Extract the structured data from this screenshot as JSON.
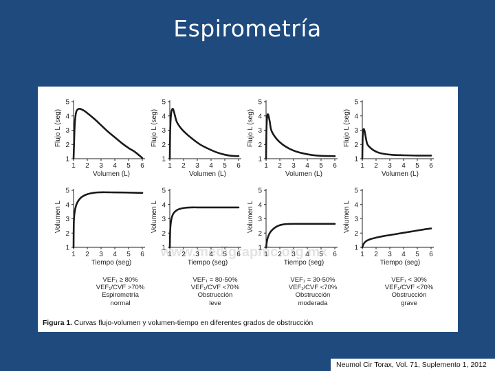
{
  "title": "Espirometría",
  "caption": {
    "label": "Figura 1.",
    "text": " Curvas flujo-volumen y volumen-tiempo en diferentes grados de obstrucción"
  },
  "watermark": "www.medigraphic.org.mx",
  "citation": "Neumol Cir Torax, Vol. 71, Suplemento 1, 2012",
  "columns": [
    {
      "lines": [
        "VEF₁ ≥ 80%",
        "VEF₁/CVF >70%",
        "Espirometría",
        "normal"
      ]
    },
    {
      "lines": [
        "VEF₁ = 80-50%",
        "VEF₁/CVF <70%",
        "Obstrucción",
        "leve"
      ]
    },
    {
      "lines": [
        "VEF₁ = 30-50%",
        "VEF₁/CVF <70%",
        "Obstrucción",
        "moderada"
      ]
    },
    {
      "lines": [
        "VEF₁ < 30%",
        "VEF₁/CVF <70%",
        "Obstrucción",
        "grave"
      ]
    }
  ],
  "chart_data": [
    {
      "type": "line",
      "row": "flujo-volumen",
      "xlabel": "Volumen (L)",
      "ylabel": "Flujo L (seg)",
      "x_ticks": [
        1,
        2,
        3,
        4,
        5,
        6
      ],
      "y_ticks": [
        1,
        2,
        3,
        4,
        5
      ],
      "xlim": [
        1,
        6
      ],
      "ylim": [
        1,
        5
      ],
      "series": [
        {
          "x": [
            1.0,
            1.05,
            1.1,
            1.2,
            1.4,
            1.7,
            2.0,
            2.5,
            3.0,
            3.5,
            4.0,
            4.5,
            5.0,
            5.5,
            6.0
          ],
          "y": [
            1.0,
            2.5,
            3.6,
            4.3,
            4.5,
            4.4,
            4.2,
            3.8,
            3.35,
            2.9,
            2.5,
            2.1,
            1.75,
            1.45,
            1.05
          ]
        }
      ]
    },
    {
      "type": "line",
      "row": "flujo-volumen",
      "xlabel": "Volumen (L)",
      "ylabel": "Flujo L (seg)",
      "x_ticks": [
        1,
        2,
        3,
        4,
        5,
        6
      ],
      "y_ticks": [
        1,
        2,
        3,
        4,
        5
      ],
      "xlim": [
        1,
        6
      ],
      "ylim": [
        1,
        5
      ],
      "series": [
        {
          "x": [
            1.0,
            1.03,
            1.1,
            1.2,
            1.3,
            1.5,
            1.8,
            2.2,
            2.7,
            3.2,
            3.8,
            4.4,
            5.0,
            5.5,
            6.0
          ],
          "y": [
            1.0,
            3.0,
            4.2,
            4.5,
            4.3,
            3.6,
            3.15,
            2.75,
            2.35,
            2.0,
            1.7,
            1.45,
            1.28,
            1.2,
            1.18
          ]
        }
      ]
    },
    {
      "type": "line",
      "row": "flujo-volumen",
      "xlabel": "Volumen (L)",
      "ylabel": "Flujo L (seg)",
      "x_ticks": [
        1,
        2,
        3,
        4,
        5,
        6
      ],
      "y_ticks": [
        1,
        2,
        3,
        4,
        5
      ],
      "xlim": [
        1,
        6
      ],
      "ylim": [
        1,
        5
      ],
      "series": [
        {
          "x": [
            1.0,
            1.03,
            1.08,
            1.15,
            1.25,
            1.35,
            1.5,
            1.8,
            2.2,
            2.7,
            3.2,
            3.8,
            4.4,
            5.0,
            6.0
          ],
          "y": [
            1.0,
            3.1,
            3.95,
            4.1,
            3.7,
            3.1,
            2.75,
            2.35,
            2.0,
            1.7,
            1.5,
            1.35,
            1.25,
            1.2,
            1.18
          ]
        }
      ]
    },
    {
      "type": "line",
      "row": "flujo-volumen",
      "xlabel": "Volumen (L)",
      "ylabel": "Flujo L (seg)",
      "x_ticks": [
        1,
        2,
        3,
        4,
        5,
        6
      ],
      "y_ticks": [
        1,
        2,
        3,
        4,
        5
      ],
      "xlim": [
        1,
        6
      ],
      "ylim": [
        1,
        5
      ],
      "series": [
        {
          "x": [
            1.0,
            1.03,
            1.08,
            1.15,
            1.25,
            1.35,
            1.5,
            1.8,
            2.2,
            2.7,
            3.2,
            4.0,
            5.0,
            6.0
          ],
          "y": [
            1.0,
            2.6,
            3.05,
            3.0,
            2.5,
            2.05,
            1.85,
            1.6,
            1.42,
            1.32,
            1.27,
            1.24,
            1.22,
            1.22
          ]
        }
      ]
    },
    {
      "type": "line",
      "row": "volumen-tiempo",
      "xlabel": "Tiempo (seg)",
      "ylabel": "Volumen L",
      "x_ticks": [
        1,
        2,
        3,
        4,
        5,
        6
      ],
      "y_ticks": [
        1,
        2,
        3,
        4,
        5
      ],
      "xlim": [
        1,
        6
      ],
      "ylim": [
        1,
        5
      ],
      "series": [
        {
          "x": [
            1.0,
            1.02,
            1.1,
            1.25,
            1.5,
            1.8,
            2.2,
            2.6,
            3.0,
            3.5,
            4.0,
            5.0,
            6.0
          ],
          "y": [
            1.0,
            2.8,
            3.6,
            4.1,
            4.45,
            4.65,
            4.78,
            4.84,
            4.86,
            4.86,
            4.85,
            4.84,
            4.82
          ]
        }
      ]
    },
    {
      "type": "line",
      "row": "volumen-tiempo",
      "xlabel": "Tiempo (seg)",
      "ylabel": "Volumen L",
      "x_ticks": [
        1,
        2,
        3,
        4,
        5,
        6
      ],
      "y_ticks": [
        1,
        2,
        3,
        4,
        5
      ],
      "xlim": [
        1,
        6
      ],
      "ylim": [
        1,
        5
      ],
      "series": [
        {
          "x": [
            1.0,
            1.03,
            1.1,
            1.25,
            1.5,
            1.8,
            2.2,
            2.6,
            3.0,
            3.5,
            4.0,
            5.0,
            6.0
          ],
          "y": [
            1.0,
            2.2,
            2.9,
            3.35,
            3.6,
            3.72,
            3.78,
            3.8,
            3.8,
            3.8,
            3.8,
            3.8,
            3.8
          ]
        }
      ]
    },
    {
      "type": "line",
      "row": "volumen-tiempo",
      "xlabel": "Tiempo (seg)",
      "ylabel": "Volumen L",
      "x_ticks": [
        1,
        2,
        3,
        4,
        5,
        6
      ],
      "y_ticks": [
        1,
        2,
        3,
        4,
        5
      ],
      "xlim": [
        1,
        6
      ],
      "ylim": [
        1,
        5
      ],
      "series": [
        {
          "x": [
            1.0,
            1.1,
            1.3,
            1.6,
            1.9,
            2.2,
            2.6,
            3.0,
            3.5,
            4.0,
            5.0,
            6.0
          ],
          "y": [
            1.0,
            1.6,
            2.05,
            2.35,
            2.52,
            2.6,
            2.64,
            2.65,
            2.65,
            2.65,
            2.65,
            2.65
          ]
        }
      ]
    },
    {
      "type": "line",
      "row": "volumen-tiempo",
      "xlabel": "Tiempo (seg)",
      "ylabel": "Volumen L",
      "x_ticks": [
        1,
        2,
        3,
        4,
        5,
        6
      ],
      "y_ticks": [
        1,
        2,
        3,
        4,
        5
      ],
      "xlim": [
        1,
        6
      ],
      "ylim": [
        1,
        5
      ],
      "series": [
        {
          "x": [
            1.0,
            1.1,
            1.3,
            1.6,
            2.0,
            2.5,
            3.0,
            3.5,
            4.0,
            4.5,
            5.0,
            5.5,
            6.0
          ],
          "y": [
            1.0,
            1.25,
            1.45,
            1.58,
            1.68,
            1.78,
            1.86,
            1.94,
            2.02,
            2.1,
            2.18,
            2.26,
            2.32
          ]
        }
      ]
    }
  ]
}
